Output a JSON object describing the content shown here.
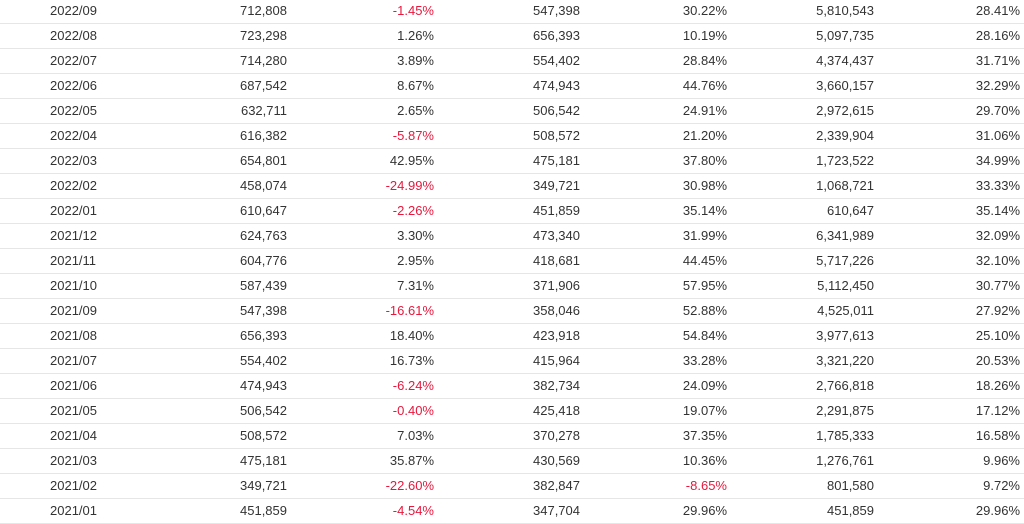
{
  "colors": {
    "text": "#333333",
    "negative": "#e8173c",
    "row_border": "#e6e6e6"
  },
  "rows": [
    [
      "2022/09",
      "712,808",
      "-1.45%",
      "547,398",
      "30.22%",
      "5,810,543",
      "28.41%"
    ],
    [
      "2022/08",
      "723,298",
      "1.26%",
      "656,393",
      "10.19%",
      "5,097,735",
      "28.16%"
    ],
    [
      "2022/07",
      "714,280",
      "3.89%",
      "554,402",
      "28.84%",
      "4,374,437",
      "31.71%"
    ],
    [
      "2022/06",
      "687,542",
      "8.67%",
      "474,943",
      "44.76%",
      "3,660,157",
      "32.29%"
    ],
    [
      "2022/05",
      "632,711",
      "2.65%",
      "506,542",
      "24.91%",
      "2,972,615",
      "29.70%"
    ],
    [
      "2022/04",
      "616,382",
      "-5.87%",
      "508,572",
      "21.20%",
      "2,339,904",
      "31.06%"
    ],
    [
      "2022/03",
      "654,801",
      "42.95%",
      "475,181",
      "37.80%",
      "1,723,522",
      "34.99%"
    ],
    [
      "2022/02",
      "458,074",
      "-24.99%",
      "349,721",
      "30.98%",
      "1,068,721",
      "33.33%"
    ],
    [
      "2022/01",
      "610,647",
      "-2.26%",
      "451,859",
      "35.14%",
      "610,647",
      "35.14%"
    ],
    [
      "2021/12",
      "624,763",
      "3.30%",
      "473,340",
      "31.99%",
      "6,341,989",
      "32.09%"
    ],
    [
      "2021/11",
      "604,776",
      "2.95%",
      "418,681",
      "44.45%",
      "5,717,226",
      "32.10%"
    ],
    [
      "2021/10",
      "587,439",
      "7.31%",
      "371,906",
      "57.95%",
      "5,112,450",
      "30.77%"
    ],
    [
      "2021/09",
      "547,398",
      "-16.61%",
      "358,046",
      "52.88%",
      "4,525,011",
      "27.92%"
    ],
    [
      "2021/08",
      "656,393",
      "18.40%",
      "423,918",
      "54.84%",
      "3,977,613",
      "25.10%"
    ],
    [
      "2021/07",
      "554,402",
      "16.73%",
      "415,964",
      "33.28%",
      "3,321,220",
      "20.53%"
    ],
    [
      "2021/06",
      "474,943",
      "-6.24%",
      "382,734",
      "24.09%",
      "2,766,818",
      "18.26%"
    ],
    [
      "2021/05",
      "506,542",
      "-0.40%",
      "425,418",
      "19.07%",
      "2,291,875",
      "17.12%"
    ],
    [
      "2021/04",
      "508,572",
      "7.03%",
      "370,278",
      "37.35%",
      "1,785,333",
      "16.58%"
    ],
    [
      "2021/03",
      "475,181",
      "35.87%",
      "430,569",
      "10.36%",
      "1,276,761",
      "9.96%"
    ],
    [
      "2021/02",
      "349,721",
      "-22.60%",
      "382,847",
      "-8.65%",
      "801,580",
      "9.72%"
    ],
    [
      "2021/01",
      "451,859",
      "-4.54%",
      "347,704",
      "29.96%",
      "451,859",
      "29.96%"
    ]
  ]
}
